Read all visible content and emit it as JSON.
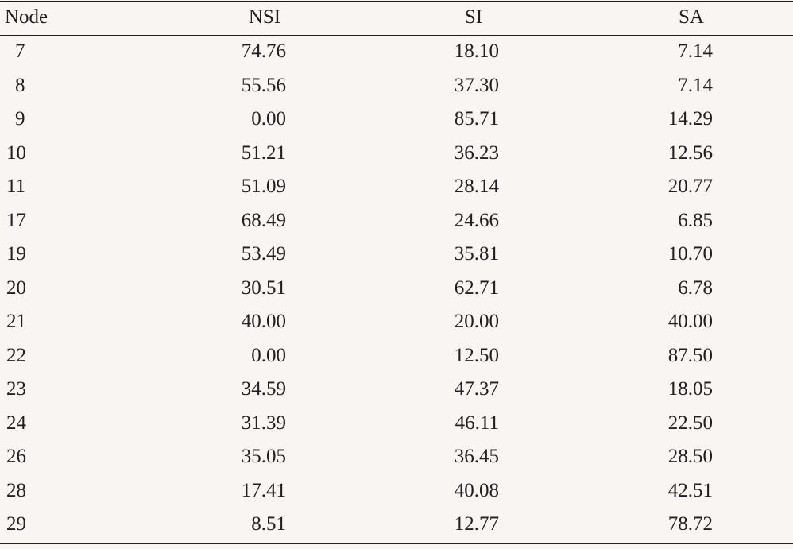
{
  "table": {
    "header": [
      "Node",
      "NSI",
      "SI",
      "SA"
    ],
    "rows": [
      [
        "7",
        "74.76",
        "18.10",
        "7.14"
      ],
      [
        "8",
        "55.56",
        "37.30",
        "7.14"
      ],
      [
        "9",
        "0.00",
        "85.71",
        "14.29"
      ],
      [
        "10",
        "51.21",
        "36.23",
        "12.56"
      ],
      [
        "11",
        "51.09",
        "28.14",
        "20.77"
      ],
      [
        "17",
        "68.49",
        "24.66",
        "6.85"
      ],
      [
        "19",
        "53.49",
        "35.81",
        "10.70"
      ],
      [
        "20",
        "30.51",
        "62.71",
        "6.78"
      ],
      [
        "21",
        "40.00",
        "20.00",
        "40.00"
      ],
      [
        "22",
        "0.00",
        "12.50",
        "87.50"
      ],
      [
        "23",
        "34.59",
        "47.37",
        "18.05"
      ],
      [
        "24",
        "31.39",
        "46.11",
        "22.50"
      ],
      [
        "26",
        "35.05",
        "36.45",
        "28.50"
      ],
      [
        "28",
        "17.41",
        "40.08",
        "42.51"
      ],
      [
        "29",
        "8.51",
        "12.77",
        "78.72"
      ]
    ]
  }
}
